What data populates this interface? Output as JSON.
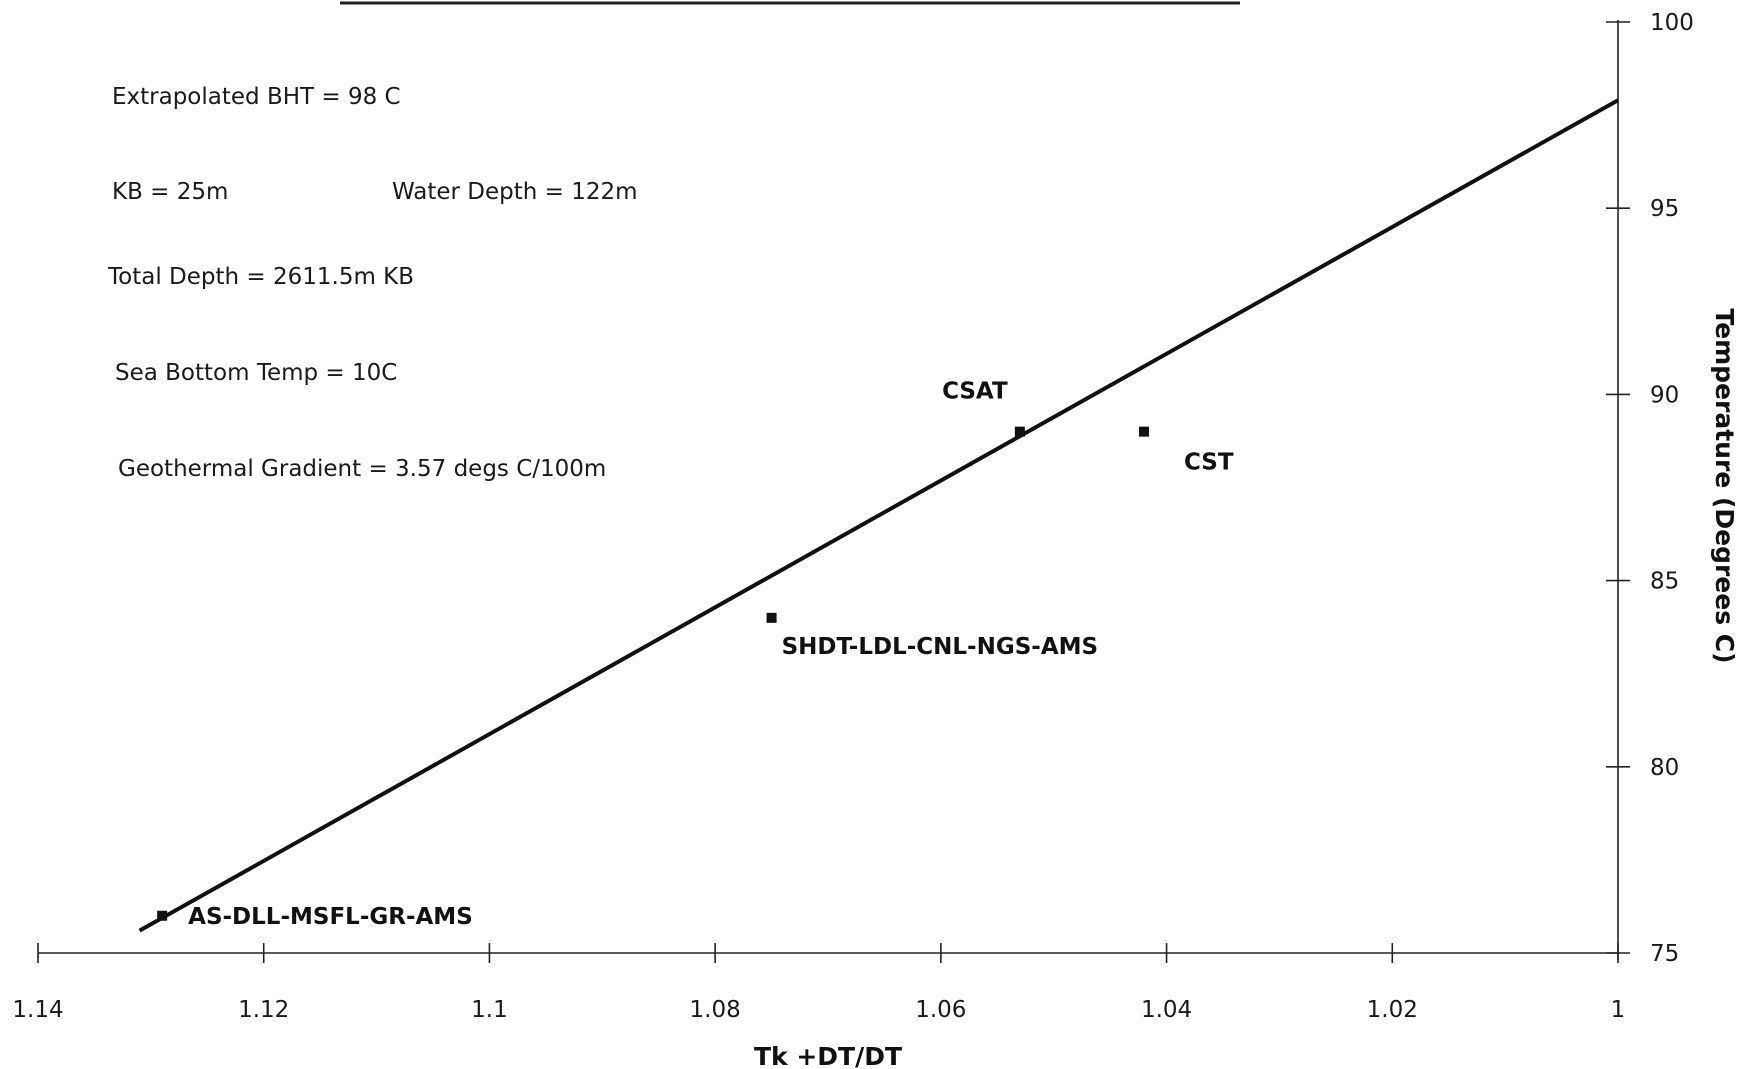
{
  "colors": {
    "ink": "#111111",
    "background": "#ffffff"
  },
  "notes": {
    "bht": "Extrapolated BHT = 98 C",
    "kb": "KB = 25m",
    "water_depth": "Water Depth = 122m",
    "total_depth": "Total Depth = 2611.5m KB",
    "sea_bottom": "Sea Bottom Temp = 10C",
    "gradient": "Geothermal Gradient = 3.57 degs C/100m"
  },
  "chart_data": {
    "type": "scatter",
    "title": "",
    "xlabel": "Tk +DT/DT",
    "ylabel": "Temperature (Degrees C)",
    "xlim": [
      1.14,
      1
    ],
    "ylim": [
      75,
      100
    ],
    "x_reversed": true,
    "x_ticks": [
      1.14,
      1.12,
      1.1,
      1.08,
      1.06,
      1.04,
      1.02,
      1
    ],
    "x_tick_labels": [
      "1.14",
      "1.12",
      "1.1",
      "1.08",
      "1.06",
      "1.04",
      "1.02",
      "1"
    ],
    "y_ticks": [
      75,
      80,
      85,
      90,
      95,
      100
    ],
    "y_tick_labels": [
      "75",
      "80",
      "85",
      "90",
      "95",
      "100"
    ],
    "y_axis_side": "right",
    "grid": false,
    "legend": "none",
    "points": [
      {
        "label": "AS-DLL-MSFL-GR-AMS",
        "x": 1.129,
        "y": 76
      },
      {
        "label": "SHDT-LDL-CNL-NGS-AMS",
        "x": 1.075,
        "y": 84
      },
      {
        "label": "CSAT",
        "x": 1.053,
        "y": 89
      },
      {
        "label": "CST",
        "x": 1.042,
        "y": 89
      }
    ],
    "fit_line": {
      "x": [
        1.131,
        1.0
      ],
      "y": [
        75.6,
        97.9
      ]
    }
  }
}
